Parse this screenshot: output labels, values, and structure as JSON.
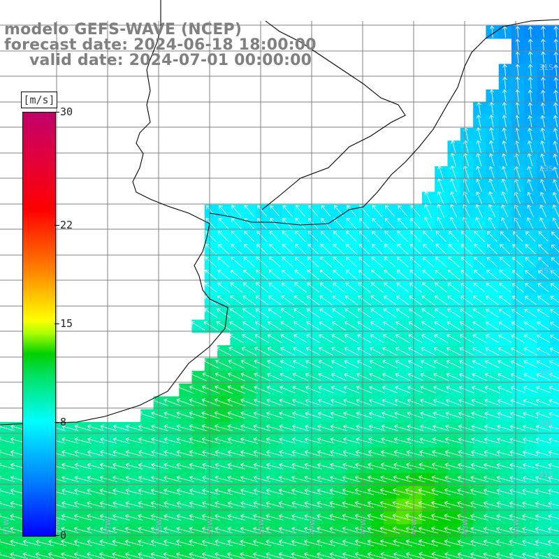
{
  "title": {
    "model": "modelo GEFS-WAVE (NCEP)",
    "forecast": "forecast date: 2024-06-18 18:00:00",
    "valid": "valid date: 2024-07-01 00:00:00"
  },
  "colorbar": {
    "unit": "[m/s]",
    "ticks": [
      {
        "label": "30",
        "value": 30
      },
      {
        "label": "22",
        "value": 22
      },
      {
        "label": "15",
        "value": 15
      },
      {
        "label": "8",
        "value": 8
      },
      {
        "label": "0",
        "value": 0
      }
    ],
    "range": [
      0,
      30
    ]
  },
  "map": {
    "latitude_labels": [
      "31S",
      "33S",
      "35S",
      "37S",
      "39S",
      "41S"
    ],
    "longitude_labels": [
      "61W",
      "59W",
      "57W",
      "55W",
      "53W",
      "51W",
      "49W",
      "47W",
      "45W",
      "43W",
      "41W"
    ],
    "colors": {
      "land": "#ffffff",
      "grid": "#808080",
      "coast": "#000000",
      "arrows": "#ffffff"
    },
    "wind_regions": [
      {
        "region": "north-east shelf",
        "speed_ms": 6.5
      },
      {
        "region": "central shelf",
        "speed_ms": 8.5
      },
      {
        "region": "southern waters",
        "speed_ms": 11
      }
    ]
  }
}
